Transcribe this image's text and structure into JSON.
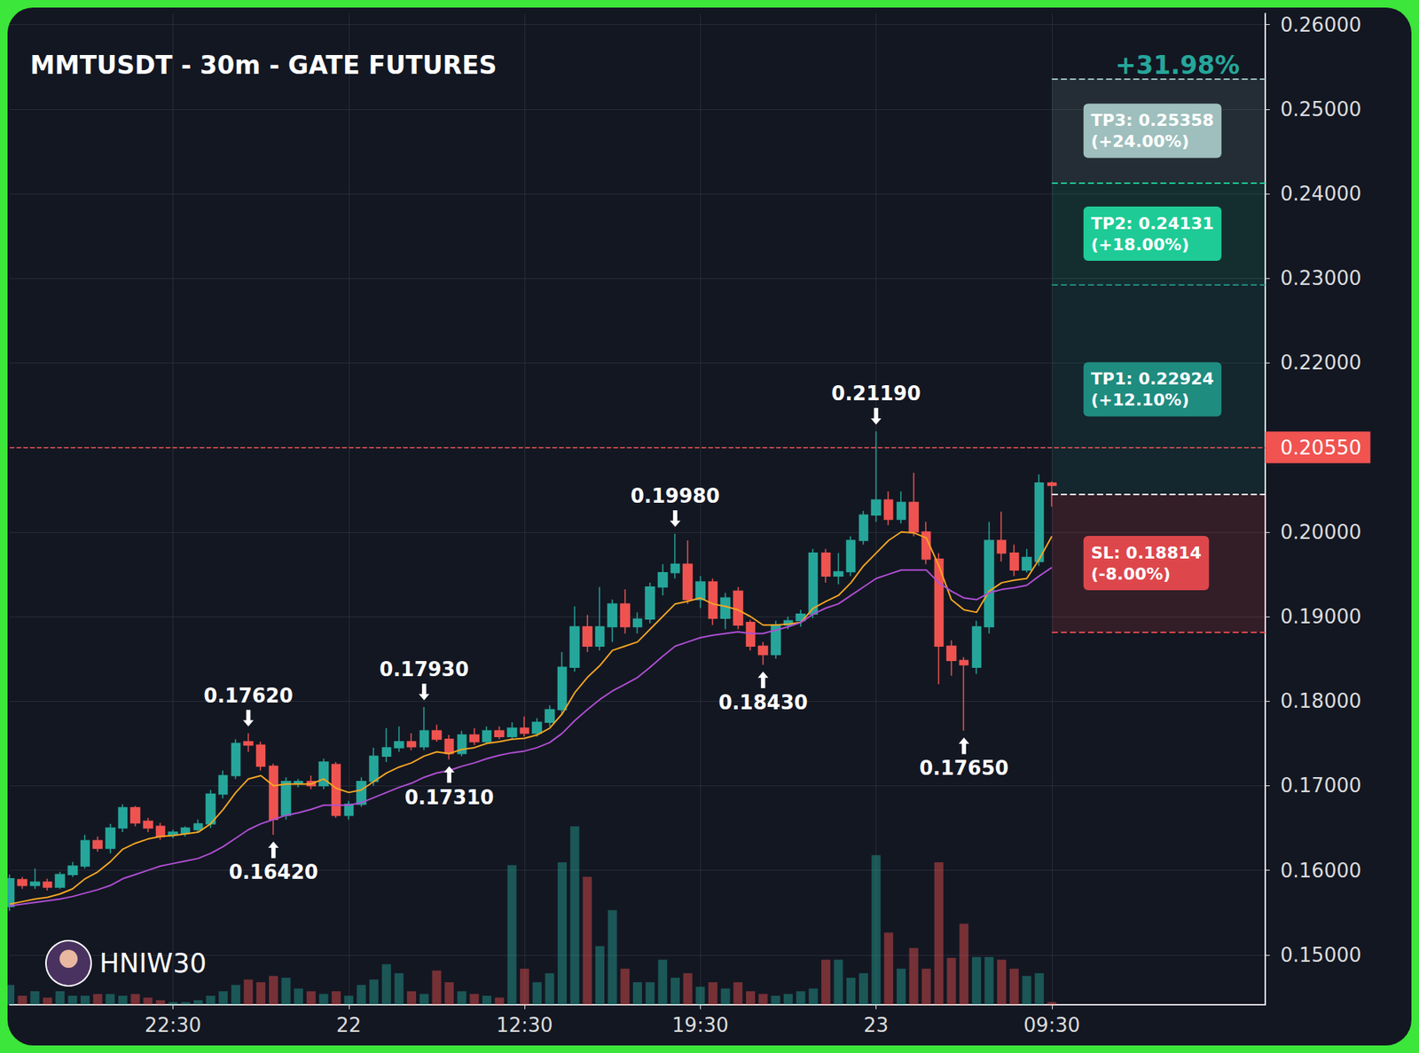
{
  "chart_data": {
    "type": "candlestick",
    "title": "MMTUSDT - 30m - GATE FUTURES",
    "headline": "+31.98%",
    "watermark": "HNIW30",
    "x": [
      null,
      null,
      null,
      null,
      null,
      null,
      null,
      null,
      null,
      null,
      null,
      null,
      null,
      "22:30",
      null,
      null,
      null,
      null,
      null,
      null,
      null,
      null,
      null,
      null,
      null,
      null,
      null,
      "22",
      null,
      null,
      null,
      null,
      null,
      null,
      null,
      null,
      null,
      null,
      null,
      null,
      null,
      "12:30",
      null,
      null,
      null,
      null,
      null,
      null,
      null,
      null,
      null,
      null,
      null,
      null,
      null,
      "19:30",
      null,
      null,
      null,
      null,
      null,
      null,
      null,
      null,
      null,
      null,
      null,
      null,
      null,
      "23",
      null,
      null,
      null,
      null,
      null,
      null,
      null,
      null,
      null,
      null,
      null,
      null,
      null,
      "09:30",
      null,
      null,
      null,
      null,
      null,
      null,
      null,
      null,
      null,
      null,
      null,
      null,
      null,
      null,
      null,
      null,
      null
    ],
    "series": [
      {
        "type": "candlestick",
        "colors": [
          "#26a69a",
          "#ef5350"
        ],
        "open": [
          0.1557,
          0.1589,
          0.1582,
          0.1586,
          0.158,
          0.1595,
          0.1605,
          0.1635,
          0.1626,
          0.165,
          0.1674,
          0.1658,
          0.1652,
          0.1642,
          0.1644,
          0.1648,
          0.1655,
          0.169,
          0.1712,
          0.1752,
          0.1748,
          0.1723,
          0.1665,
          0.1703,
          0.1705,
          0.17,
          0.1725,
          0.1665,
          0.1678,
          0.1705,
          0.1735,
          0.1745,
          0.1752,
          0.1746,
          0.1765,
          0.1755,
          0.1738,
          0.176,
          0.1752,
          0.1765,
          0.1758,
          0.1768,
          0.1762,
          0.1775,
          0.179,
          0.184,
          0.1888,
          0.1865,
          0.1888,
          0.1915,
          0.1888,
          0.1897,
          0.1935,
          0.1952,
          0.1962,
          0.192,
          0.1941,
          0.1898,
          0.193,
          0.1893,
          0.1865,
          0.1855,
          0.189,
          0.1895,
          0.1903,
          0.1975,
          0.1948,
          0.1953,
          0.199,
          0.202,
          0.2038,
          0.2015,
          0.2035,
          0.2,
          0.1968,
          0.1865,
          0.1848,
          0.184,
          0.1888,
          0.199,
          0.1975,
          0.1955,
          0.1965,
          0.2058,
          null,
          null,
          null,
          null,
          null,
          null,
          null,
          null,
          null,
          null,
          null,
          null,
          null,
          null,
          null,
          null,
          null
        ],
        "high": [
          0.1595,
          0.1592,
          0.1602,
          0.159,
          0.1598,
          0.161,
          0.1642,
          0.164,
          0.1655,
          0.1678,
          0.1676,
          0.1662,
          0.1656,
          0.1648,
          0.1652,
          0.166,
          0.1695,
          0.1718,
          0.1755,
          0.1762,
          0.1752,
          0.1726,
          0.171,
          0.1708,
          0.1712,
          0.1732,
          0.1728,
          0.1682,
          0.171,
          0.1745,
          0.1768,
          0.177,
          0.1762,
          0.1793,
          0.1772,
          0.176,
          0.1765,
          0.1768,
          0.177,
          0.177,
          0.1775,
          0.1782,
          0.178,
          0.1795,
          0.1858,
          0.1912,
          0.1902,
          0.1935,
          0.192,
          0.1932,
          0.1905,
          0.194,
          0.1962,
          0.1998,
          0.199,
          0.1948,
          0.1945,
          0.1928,
          0.1935,
          0.1896,
          0.187,
          0.1895,
          0.19,
          0.1908,
          0.198,
          0.198,
          0.1975,
          0.1995,
          0.2025,
          0.2119,
          0.2048,
          0.2048,
          0.207,
          0.2012,
          0.1975,
          0.1872,
          0.1852,
          0.1895,
          0.2012,
          0.2024,
          0.1985,
          0.198,
          0.2068,
          0.206,
          null,
          null,
          null,
          null,
          null,
          null,
          null,
          null,
          null,
          null,
          null,
          null,
          null,
          null,
          null,
          null,
          null
        ],
        "low": [
          0.1552,
          0.1578,
          0.1578,
          0.1576,
          0.1578,
          0.1592,
          0.1602,
          0.1622,
          0.162,
          0.1645,
          0.1652,
          0.1645,
          0.1636,
          0.1638,
          0.164,
          0.1645,
          0.165,
          0.1685,
          0.1708,
          0.174,
          0.1718,
          0.1642,
          0.166,
          0.1698,
          0.1696,
          0.1696,
          0.1662,
          0.166,
          0.1675,
          0.17,
          0.1728,
          0.174,
          0.1742,
          0.1742,
          0.1752,
          0.1731,
          0.1735,
          0.1748,
          0.175,
          0.1755,
          0.1755,
          0.1758,
          0.1758,
          0.177,
          0.1785,
          0.1835,
          0.1858,
          0.186,
          0.187,
          0.188,
          0.188,
          0.1892,
          0.1925,
          0.1945,
          0.1915,
          0.191,
          0.189,
          0.1885,
          0.1885,
          0.186,
          0.1843,
          0.185,
          0.1885,
          0.1888,
          0.1898,
          0.194,
          0.1938,
          0.1948,
          0.1985,
          0.2012,
          0.2008,
          0.201,
          0.1995,
          0.1962,
          0.182,
          0.183,
          0.1765,
          0.1832,
          0.188,
          0.1965,
          0.1948,
          0.1952,
          0.196,
          0.203,
          null,
          null,
          null,
          null,
          null,
          null,
          null,
          null,
          null,
          null,
          null,
          null,
          null,
          null,
          null,
          null,
          null
        ],
        "close": [
          0.159,
          0.1582,
          0.1586,
          0.158,
          0.1595,
          0.1605,
          0.1635,
          0.1626,
          0.165,
          0.1674,
          0.1656,
          0.165,
          0.164,
          0.1645,
          0.165,
          0.1655,
          0.169,
          0.1712,
          0.175,
          0.1748,
          0.1723,
          0.166,
          0.1705,
          0.1705,
          0.17,
          0.1728,
          0.1665,
          0.1678,
          0.1705,
          0.1735,
          0.1745,
          0.1752,
          0.1746,
          0.1765,
          0.1755,
          0.1738,
          0.176,
          0.1752,
          0.1765,
          0.1758,
          0.1768,
          0.1762,
          0.1775,
          0.179,
          0.184,
          0.1888,
          0.1865,
          0.1888,
          0.1915,
          0.1888,
          0.1897,
          0.1935,
          0.1952,
          0.1962,
          0.192,
          0.1941,
          0.1898,
          0.1922,
          0.189,
          0.1865,
          0.1855,
          0.189,
          0.1895,
          0.1903,
          0.1975,
          0.1948,
          0.1953,
          0.199,
          0.202,
          0.2038,
          0.2015,
          0.2035,
          0.2,
          0.1968,
          0.1865,
          0.1848,
          0.1843,
          0.1888,
          0.199,
          0.1975,
          0.1955,
          0.197,
          0.2058,
          0.2055,
          null,
          null,
          null,
          null,
          null,
          null,
          null,
          null,
          null,
          null,
          null,
          null,
          null,
          null,
          null,
          null,
          null
        ]
      },
      {
        "type": "line",
        "color": "#f5a623",
        "values": [
          0.156,
          0.1563,
          0.1566,
          0.1568,
          0.1572,
          0.1578,
          0.159,
          0.1598,
          0.161,
          0.1625,
          0.1632,
          0.1637,
          0.164,
          0.1641,
          0.1643,
          0.1645,
          0.1655,
          0.1672,
          0.1692,
          0.1708,
          0.1712,
          0.17,
          0.1702,
          0.1702,
          0.1702,
          0.1708,
          0.1697,
          0.1692,
          0.1695,
          0.1705,
          0.1715,
          0.1722,
          0.1727,
          0.1735,
          0.174,
          0.1738,
          0.1743,
          0.1745,
          0.175,
          0.1752,
          0.1755,
          0.1756,
          0.176,
          0.1768,
          0.1785,
          0.181,
          0.1828,
          0.1842,
          0.186,
          0.1865,
          0.187,
          0.1885,
          0.19,
          0.1915,
          0.1918,
          0.1922,
          0.1915,
          0.1912,
          0.1908,
          0.19,
          0.189,
          0.189,
          0.1891,
          0.1893,
          0.191,
          0.1918,
          0.1925,
          0.194,
          0.196,
          0.1975,
          0.199,
          0.2,
          0.1999,
          0.1993,
          0.196,
          0.192,
          0.1908,
          0.1905,
          0.193,
          0.194,
          0.1943,
          0.1945,
          0.1968,
          0.1995,
          null,
          null,
          null,
          null,
          null,
          null,
          null,
          null,
          null,
          null,
          null,
          null,
          null,
          null,
          null,
          null,
          null
        ]
      },
      {
        "type": "line",
        "color": "#b04fd4",
        "values": [
          0.1558,
          0.156,
          0.1562,
          0.1564,
          0.1566,
          0.1569,
          0.1573,
          0.1577,
          0.1582,
          0.159,
          0.1595,
          0.16,
          0.1605,
          0.1608,
          0.1611,
          0.1614,
          0.162,
          0.1628,
          0.1638,
          0.1648,
          0.1655,
          0.166,
          0.1665,
          0.1668,
          0.1672,
          0.1677,
          0.1677,
          0.1677,
          0.168,
          0.1686,
          0.1692,
          0.1698,
          0.1703,
          0.171,
          0.1715,
          0.1718,
          0.1723,
          0.1727,
          0.1732,
          0.1736,
          0.1739,
          0.1741,
          0.1745,
          0.1751,
          0.1762,
          0.1777,
          0.179,
          0.1802,
          0.1812,
          0.182,
          0.1828,
          0.184,
          0.1853,
          0.1865,
          0.187,
          0.1875,
          0.1878,
          0.188,
          0.1882,
          0.188,
          0.188,
          0.1884,
          0.1888,
          0.1893,
          0.1903,
          0.191,
          0.1915,
          0.1925,
          0.1935,
          0.1945,
          0.195,
          0.1955,
          0.1955,
          0.1955,
          0.194,
          0.193,
          0.1922,
          0.192,
          0.1928,
          0.1932,
          0.1934,
          0.1937,
          0.1948,
          0.1958,
          null,
          null,
          null,
          null,
          null,
          null,
          null,
          null,
          null,
          null,
          null,
          null,
          null,
          null,
          null,
          null,
          null
        ]
      },
      {
        "type": "bar",
        "axis": "y2",
        "values": [
          22,
          10,
          15,
          8,
          15,
          10,
          10,
          12,
          12,
          10,
          12,
          8,
          5,
          3,
          3,
          5,
          10,
          15,
          22,
          28,
          25,
          32,
          30,
          18,
          15,
          12,
          15,
          10,
          22,
          28,
          45,
          35,
          15,
          12,
          38,
          25,
          15,
          12,
          10,
          8,
          155,
          40,
          25,
          35,
          158,
          198,
          142,
          65,
          105,
          40,
          25,
          25,
          50,
          30,
          35,
          20,
          25,
          18,
          25,
          15,
          12,
          10,
          12,
          15,
          18,
          50,
          50,
          30,
          35,
          166,
          80,
          40,
          63,
          40,
          158,
          52,
          90,
          53,
          53,
          50,
          40,
          32,
          35,
          3,
          null,
          null,
          null,
          null,
          null,
          null,
          null,
          null,
          null,
          null,
          null,
          null,
          null,
          null,
          null,
          null,
          null
        ]
      }
    ],
    "ylim": [
      0.1441,
      0.2613
    ],
    "yticks": [
      {
        "value": 0.15,
        "label": "0.15000"
      },
      {
        "value": 0.16,
        "label": "0.16000"
      },
      {
        "value": 0.17,
        "label": "0.17000"
      },
      {
        "value": 0.18,
        "label": "0.18000"
      },
      {
        "value": 0.19,
        "label": "0.19000"
      },
      {
        "value": 0.2,
        "label": "0.20000"
      },
      {
        "value": 0.21,
        "label": "0.21000"
      },
      {
        "value": 0.22,
        "label": "0.22000"
      },
      {
        "value": 0.23,
        "label": "0.23000"
      },
      {
        "value": 0.24,
        "label": "0.24000"
      },
      {
        "value": 0.25,
        "label": "0.25000"
      },
      {
        "value": 0.26,
        "label": "0.26000"
      }
    ],
    "y2lim": [
      0,
      1100
    ],
    "grid": true,
    "current_price": {
      "value": 0.2055,
      "label": "0.20550",
      "color": "#f05350"
    },
    "entry": {
      "value": 0.2045,
      "color": "#ffffff"
    },
    "zone_from": 83,
    "targets": [
      {
        "text": "TP1: 0.22924",
        "change": "(+12.10%)",
        "value": 0.22924,
        "color": "#1f8c80"
      },
      {
        "text": "TP2: 0.24131",
        "change": "(+18.00%)",
        "value": 0.24131,
        "color": "#1ecb96"
      },
      {
        "text": "TP3: 0.25358",
        "change": "(+24.00%)",
        "value": 0.25358,
        "color": "#9ebfbd"
      }
    ],
    "stop_loss": {
      "text": "SL: 0.18814",
      "change": "(-8.00%)",
      "value": 0.18814,
      "color": "#dd474c"
    },
    "annotations": [
      {
        "label": "0.17620",
        "x": 19,
        "y": 0.1762
      },
      {
        "label": "0.16420",
        "x": 21,
        "y": 0.1642
      },
      {
        "label": "0.17930",
        "x": 33,
        "y": 0.1793
      },
      {
        "label": "0.17310",
        "x": 35,
        "y": 0.1731
      },
      {
        "label": "0.19980",
        "x": 53,
        "y": 0.1998
      },
      {
        "label": "0.18430",
        "x": 60,
        "y": 0.1843
      },
      {
        "label": "0.21190",
        "x": 69,
        "y": 0.2119
      },
      {
        "label": "0.17650",
        "x": 76,
        "y": 0.1765
      }
    ]
  }
}
